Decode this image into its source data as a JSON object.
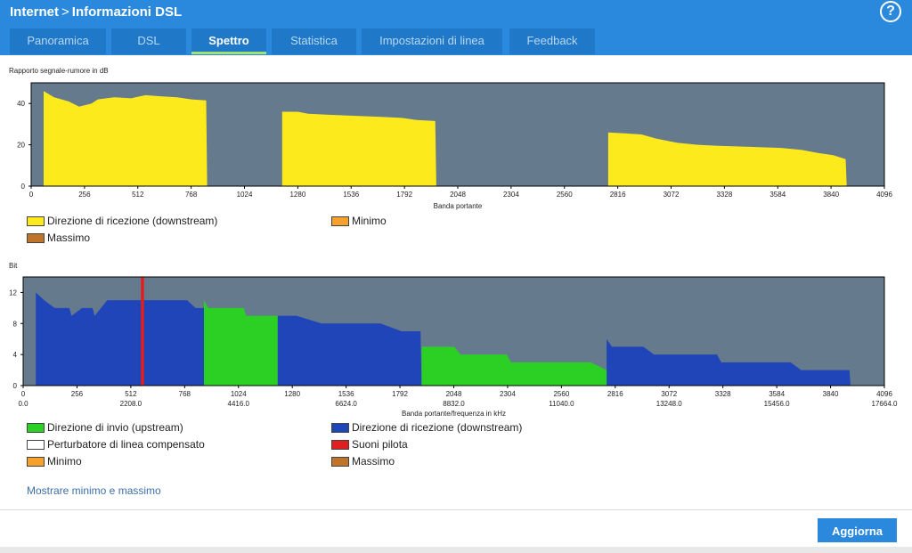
{
  "header": {
    "section": "Internet",
    "page": "Informazioni DSL",
    "help_icon": "?"
  },
  "tabs": [
    "Panoramica",
    "DSL",
    "Spettro",
    "Statistica",
    "Impostazioni di linea",
    "Feedback"
  ],
  "active_tab": "Spettro",
  "chart_data": [
    {
      "type": "area",
      "title": "Rapporto segnale-rumore in dB",
      "xlabel": "Banda portante",
      "ylabel": "",
      "xlim": [
        0,
        4096
      ],
      "ylim": [
        0,
        50
      ],
      "x_ticks": [
        0,
        256,
        512,
        768,
        1024,
        1280,
        1536,
        1792,
        2048,
        2304,
        2560,
        2816,
        3072,
        3328,
        3584,
        3840,
        4096
      ],
      "y_ticks": [
        0,
        20,
        40
      ],
      "plot_bg": "#667a8e",
      "series": [
        {
          "name": "Direzione di ricezione (downstream)",
          "color": "#fdea1c",
          "points": [
            [
              60,
              0
            ],
            [
              60,
              46
            ],
            [
              110,
              43
            ],
            [
              180,
              41
            ],
            [
              230,
              38.5
            ],
            [
              290,
              40
            ],
            [
              320,
              42
            ],
            [
              400,
              43
            ],
            [
              480,
              42.5
            ],
            [
              500,
              43
            ],
            [
              550,
              44
            ],
            [
              620,
              43.5
            ],
            [
              700,
              43
            ],
            [
              770,
              42
            ],
            [
              840,
              41.5
            ],
            [
              845,
              0
            ],
            [
              1205,
              0
            ],
            [
              1205,
              36
            ],
            [
              1280,
              36
            ],
            [
              1330,
              35
            ],
            [
              1440,
              34.5
            ],
            [
              1560,
              34
            ],
            [
              1680,
              33.5
            ],
            [
              1780,
              33
            ],
            [
              1850,
              32
            ],
            [
              1940,
              31.5
            ],
            [
              1945,
              0
            ],
            [
              2770,
              0
            ],
            [
              2770,
              26
            ],
            [
              2850,
              25.5
            ],
            [
              2930,
              25
            ],
            [
              3000,
              23
            ],
            [
              3100,
              21
            ],
            [
              3200,
              20
            ],
            [
              3300,
              19.5
            ],
            [
              3450,
              19
            ],
            [
              3600,
              18.5
            ],
            [
              3700,
              17.5
            ],
            [
              3780,
              16
            ],
            [
              3850,
              15
            ],
            [
              3910,
              13
            ],
            [
              3915,
              0
            ]
          ]
        }
      ],
      "legend": [
        {
          "label": "Direzione di ricezione (downstream)",
          "color": "#fdea1c"
        },
        {
          "label": "Minimo",
          "color": "#f5a12b"
        },
        {
          "label": "Massimo",
          "color": "#c0742a"
        }
      ]
    },
    {
      "type": "area",
      "title": "Bit",
      "xlabel": "Banda portante/frequenza in kHz",
      "ylabel": "",
      "xlim": [
        0,
        4096
      ],
      "ylim": [
        0,
        14
      ],
      "x_ticks": [
        0,
        256,
        512,
        768,
        1024,
        1280,
        1536,
        1792,
        2048,
        2304,
        2560,
        2816,
        3072,
        3328,
        3584,
        3840,
        4096
      ],
      "x_freq_ticks": [
        "0.0",
        "2208.0",
        "4416.0",
        "6624.0",
        "8832.0",
        "11040.0",
        "13248.0",
        "15456.0",
        "17664.0"
      ],
      "y_ticks": [
        0,
        4,
        8,
        12
      ],
      "plot_bg": "#667a8e",
      "series": [
        {
          "name": "Direzione di ricezione (downstream)",
          "color": "#1f45b8",
          "points": [
            [
              60,
              0
            ],
            [
              60,
              12
            ],
            [
              100,
              11
            ],
            [
              150,
              10
            ],
            [
              220,
              10
            ],
            [
              230,
              9
            ],
            [
              280,
              10
            ],
            [
              330,
              10
            ],
            [
              340,
              9
            ],
            [
              400,
              11
            ],
            [
              470,
              11
            ],
            [
              510,
              11
            ],
            [
              560,
              11
            ],
            [
              700,
              11
            ],
            [
              780,
              11
            ],
            [
              820,
              10
            ],
            [
              860,
              10
            ],
            [
              865,
              0
            ],
            [
              1210,
              0
            ],
            [
              1210,
              9
            ],
            [
              1300,
              9
            ],
            [
              1420,
              8
            ],
            [
              1700,
              8
            ],
            [
              1800,
              7
            ],
            [
              1890,
              7
            ],
            [
              1895,
              0
            ],
            [
              2775,
              0
            ],
            [
              2775,
              6
            ],
            [
              2800,
              5
            ],
            [
              2950,
              5
            ],
            [
              3000,
              4
            ],
            [
              3300,
              4
            ],
            [
              3320,
              3
            ],
            [
              3650,
              3
            ],
            [
              3700,
              2
            ],
            [
              3930,
              2
            ],
            [
              3935,
              0
            ]
          ]
        },
        {
          "name": "Direzione di invio (upstream)",
          "color": "#2ccf23",
          "points": [
            [
              860,
              0
            ],
            [
              860,
              11
            ],
            [
              880,
              10
            ],
            [
              1050,
              10
            ],
            [
              1060,
              9
            ],
            [
              1210,
              9
            ],
            [
              1210,
              0
            ],
            [
              1895,
              0
            ],
            [
              1895,
              5
            ],
            [
              2050,
              5
            ],
            [
              2080,
              4
            ],
            [
              2300,
              4
            ],
            [
              2320,
              3
            ],
            [
              2700,
              3
            ],
            [
              2775,
              2
            ],
            [
              2775,
              0
            ]
          ]
        },
        {
          "name": "Suoni pilota",
          "color": "#e02020",
          "points": [
            [
              560,
              0
            ],
            [
              560,
              14
            ],
            [
              575,
              14
            ],
            [
              575,
              0
            ]
          ]
        }
      ],
      "legend": [
        {
          "label": "Direzione di invio (upstream)",
          "color": "#2ccf23"
        },
        {
          "label": "Direzione di ricezione (downstream)",
          "color": "#1f45b8"
        },
        {
          "label": "Perturbatore di linea compensato",
          "color": "#ffffff"
        },
        {
          "label": "Suoni pilota",
          "color": "#e02020"
        },
        {
          "label": "Minimo",
          "color": "#f5a12b"
        },
        {
          "label": "Massimo",
          "color": "#c0742a"
        }
      ]
    }
  ],
  "show_minmax_link": "Mostrare minimo e massimo",
  "refresh_button": "Aggiorna"
}
